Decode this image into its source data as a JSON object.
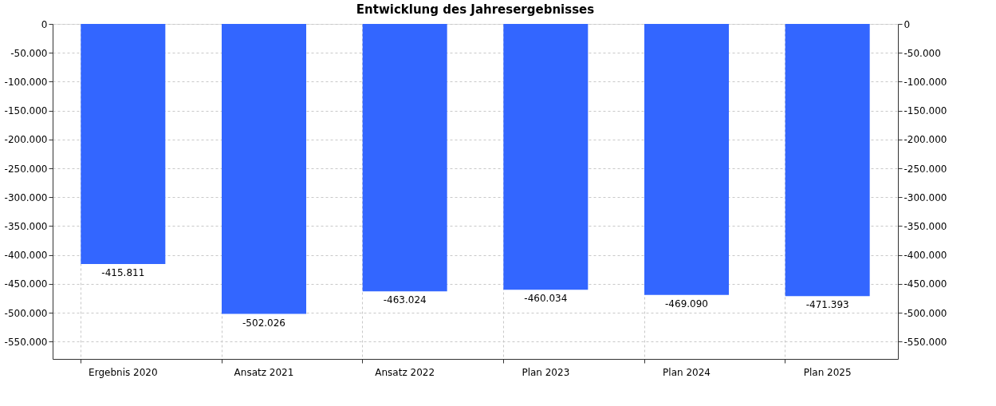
{
  "chart_data": {
    "type": "bar",
    "title": "Entwicklung des Jahresergebnisses",
    "categories": [
      "Ergebnis 2020",
      "Ansatz 2021",
      "Ansatz 2022",
      "Plan 2023",
      "Plan 2024",
      "Plan 2025"
    ],
    "series": [
      {
        "color": "#3366ff",
        "values": [
          -415811,
          -502026,
          -463024,
          -460034,
          -469090,
          -471393
        ],
        "value_labels": [
          "-415.811",
          "-502.026",
          "-463.024",
          "-460.034",
          "-469.090",
          "-471.393"
        ]
      }
    ],
    "ylim": [
      -580000,
      0
    ],
    "yticks": [
      {
        "value": 0,
        "label": "0"
      },
      {
        "value": -50000,
        "label": "-50.000"
      },
      {
        "value": -100000,
        "label": "-100.000"
      },
      {
        "value": -150000,
        "label": "-150.000"
      },
      {
        "value": -200000,
        "label": "-200.000"
      },
      {
        "value": -250000,
        "label": "-250.000"
      },
      {
        "value": -300000,
        "label": "-300.000"
      },
      {
        "value": -350000,
        "label": "-350.000"
      },
      {
        "value": -400000,
        "label": "-400.000"
      },
      {
        "value": -450000,
        "label": "-450.000"
      },
      {
        "value": -500000,
        "label": "-500.000"
      },
      {
        "value": -550000,
        "label": "-550.000"
      }
    ],
    "y2lim": [
      -580000,
      0
    ],
    "y2ticks": [
      {
        "value": 0,
        "label": "0"
      },
      {
        "value": -50000,
        "label": "-50.000"
      },
      {
        "value": -100000,
        "label": "-100.000"
      },
      {
        "value": -150000,
        "label": "-150.000"
      },
      {
        "value": -200000,
        "label": "-200.000"
      },
      {
        "value": -250000,
        "label": "-250.000"
      },
      {
        "value": -300000,
        "label": "-300.000"
      },
      {
        "value": -350000,
        "label": "-350.000"
      },
      {
        "value": -400000,
        "label": "-400.000"
      },
      {
        "value": -450000,
        "label": "-450.000"
      },
      {
        "value": -500000,
        "label": "-500.000"
      },
      {
        "value": -550000,
        "label": "-550.000"
      }
    ],
    "grid": true
  }
}
